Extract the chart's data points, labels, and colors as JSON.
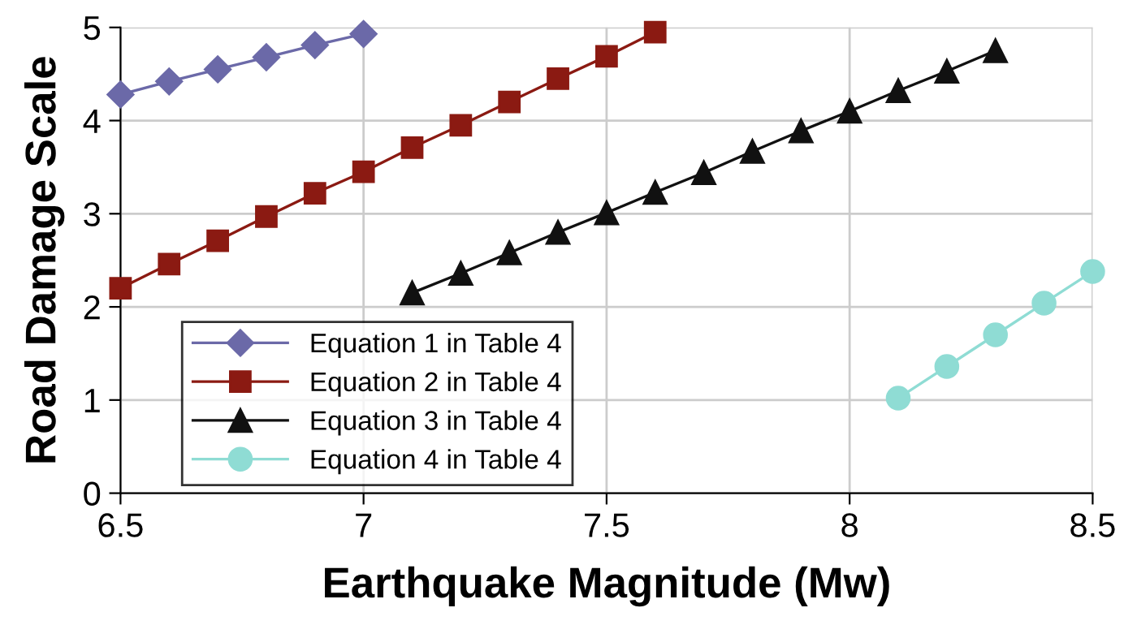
{
  "chart_data": {
    "type": "line",
    "xlabel": "Earthquake Magnitude (Mw)",
    "ylabel": "Road Damage Scale",
    "xlim": [
      6.5,
      8.5
    ],
    "xticks": [
      6.5,
      7,
      7.5,
      8,
      8.5
    ],
    "ylim": [
      0,
      5
    ],
    "yticks": [
      0,
      1,
      2,
      3,
      4,
      5
    ],
    "grid": true,
    "legend": "bottom left",
    "series": [
      {
        "name": "Equation 1 in Table 4",
        "color": "#6b69a8",
        "marker": "diamond",
        "x": [
          6.5,
          6.6,
          6.7,
          6.8,
          6.9,
          7.0
        ],
        "values": [
          4.28,
          4.42,
          4.55,
          4.68,
          4.81,
          4.93
        ]
      },
      {
        "name": "Equation 2 in Table 4",
        "color": "#8b1a12",
        "marker": "square",
        "x": [
          6.5,
          6.6,
          6.7,
          6.8,
          6.9,
          7.0,
          7.1,
          7.2,
          7.3,
          7.4,
          7.5,
          7.6
        ],
        "values": [
          2.2,
          2.46,
          2.71,
          2.97,
          3.22,
          3.45,
          3.71,
          3.95,
          4.2,
          4.45,
          4.69,
          4.95
        ]
      },
      {
        "name": "Equation 3 in Table 4",
        "color": "#111111",
        "marker": "triangle",
        "x": [
          7.1,
          7.2,
          7.3,
          7.4,
          7.5,
          7.6,
          7.7,
          7.8,
          7.9,
          8.0,
          8.1,
          8.2,
          8.3
        ],
        "values": [
          2.15,
          2.36,
          2.58,
          2.8,
          3.01,
          3.23,
          3.44,
          3.67,
          3.89,
          4.1,
          4.32,
          4.53,
          4.75
        ]
      },
      {
        "name": "Equation 4 in Table 4",
        "color": "#8fdcd4",
        "marker": "circle",
        "x": [
          8.1,
          8.2,
          8.3,
          8.4,
          8.5
        ],
        "values": [
          1.02,
          1.36,
          1.7,
          2.04,
          2.38
        ]
      }
    ]
  }
}
